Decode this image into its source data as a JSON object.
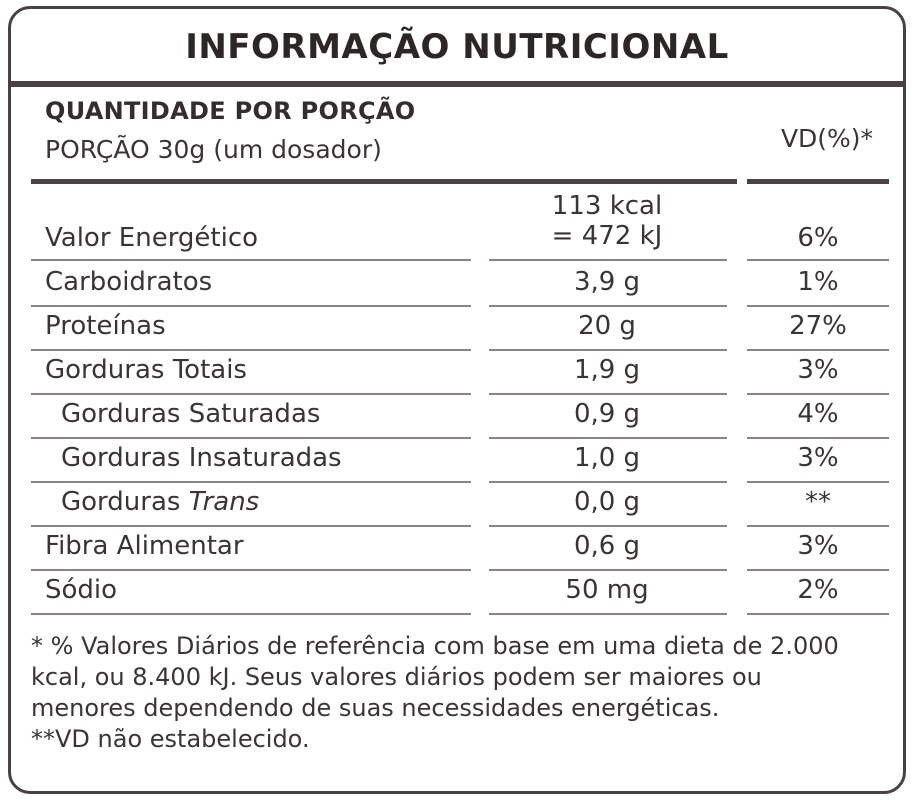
{
  "title": "INFORMAÇÃO NUTRICIONAL",
  "header": {
    "line1": "QUANTIDADE POR PORÇÃO",
    "line2": "PORÇÃO 30g (um dosador)",
    "vd_label": "VD(%)*"
  },
  "energy": {
    "name": "Valor Energético",
    "amount_line1": "113 kcal",
    "amount_line2": "= 472 kJ",
    "vd": "6%"
  },
  "rows": [
    {
      "name": "Carboidratos",
      "amount": "3,9 g",
      "vd": "1%"
    },
    {
      "name": "Proteínas",
      "amount": "20 g",
      "vd": "27%"
    },
    {
      "name": "Gorduras Totais",
      "amount": "1,9 g",
      "vd": "3%"
    },
    {
      "name": "Gorduras Saturadas",
      "amount": "0,9 g",
      "vd": "4%"
    },
    {
      "name": "Gorduras Insaturadas",
      "amount": "1,0 g",
      "vd": "3%"
    },
    {
      "name_prefix": "Gorduras ",
      "name_italic": "Trans",
      "amount": "0,0 g",
      "vd": "**"
    },
    {
      "name": "Fibra Alimentar",
      "amount": "0,6 g",
      "vd": "3%"
    },
    {
      "name": "Sódio",
      "amount": "50 mg",
      "vd": "2%"
    }
  ],
  "footnote": {
    "line1": "* % Valores Diários de referência com base em uma dieta de 2.000",
    "line2": "kcal, ou 8.400 kJ. Seus valores diários podem ser maiores ou",
    "line3": "menores dependendo de suas necessidades energéticas.",
    "line4": "**VD não estabelecido."
  }
}
